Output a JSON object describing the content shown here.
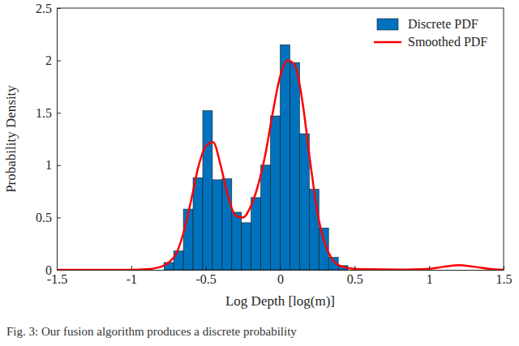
{
  "chart_data": {
    "type": "histogram",
    "x_label": "Log Depth [log(m)]",
    "y_label": "Probability Density",
    "caption": "Fig. 3: Our fusion algorithm produces a discrete probability",
    "xlim": [
      -1.5,
      1.5
    ],
    "xticks": [
      -1.5,
      -1,
      -0.5,
      0,
      0.5,
      1,
      1.5
    ],
    "ylim": [
      0,
      2.5
    ],
    "yticks": [
      0,
      0.5,
      1,
      1.5,
      2,
      2.5
    ],
    "legend": "upper right",
    "series": [
      {
        "name": "Discrete PDF",
        "type": "bar",
        "color": "#0072bd",
        "bins": [
          -0.78,
          -0.715,
          -0.65,
          -0.585,
          -0.52,
          -0.455,
          -0.39,
          -0.325,
          -0.26,
          -0.195,
          -0.13,
          -0.065,
          0,
          0.065,
          0.13,
          0.195,
          0.26,
          0.325,
          0.39,
          0.455
        ],
        "values": [
          0.07,
          0.18,
          0.58,
          0.88,
          1.52,
          0.86,
          0.87,
          0.55,
          0.45,
          0.69,
          1.0,
          1.47,
          2.15,
          1.98,
          1.3,
          0.77,
          0.4,
          0.12,
          0.04
        ]
      },
      {
        "name": "Smoothed PDF",
        "type": "line",
        "color": "#ff0000",
        "x": [
          -1.5,
          -1.0,
          -0.9,
          -0.8,
          -0.7,
          -0.65,
          -0.6,
          -0.55,
          -0.5,
          -0.45,
          -0.4,
          -0.35,
          -0.3,
          -0.25,
          -0.2,
          -0.15,
          -0.1,
          -0.05,
          0,
          0.05,
          0.1,
          0.15,
          0.2,
          0.25,
          0.3,
          0.35,
          0.4,
          0.5,
          0.6,
          0.8,
          1.0,
          1.1,
          1.2,
          1.3,
          1.4,
          1.5
        ],
        "values": [
          0,
          0,
          0.005,
          0.03,
          0.15,
          0.35,
          0.65,
          0.98,
          1.18,
          1.22,
          1.0,
          0.7,
          0.52,
          0.5,
          0.6,
          0.8,
          1.1,
          1.5,
          1.85,
          2.0,
          1.95,
          1.6,
          1.05,
          0.55,
          0.25,
          0.1,
          0.04,
          0.01,
          0.005,
          0.002,
          0.01,
          0.03,
          0.045,
          0.03,
          0.01,
          0
        ]
      }
    ]
  }
}
